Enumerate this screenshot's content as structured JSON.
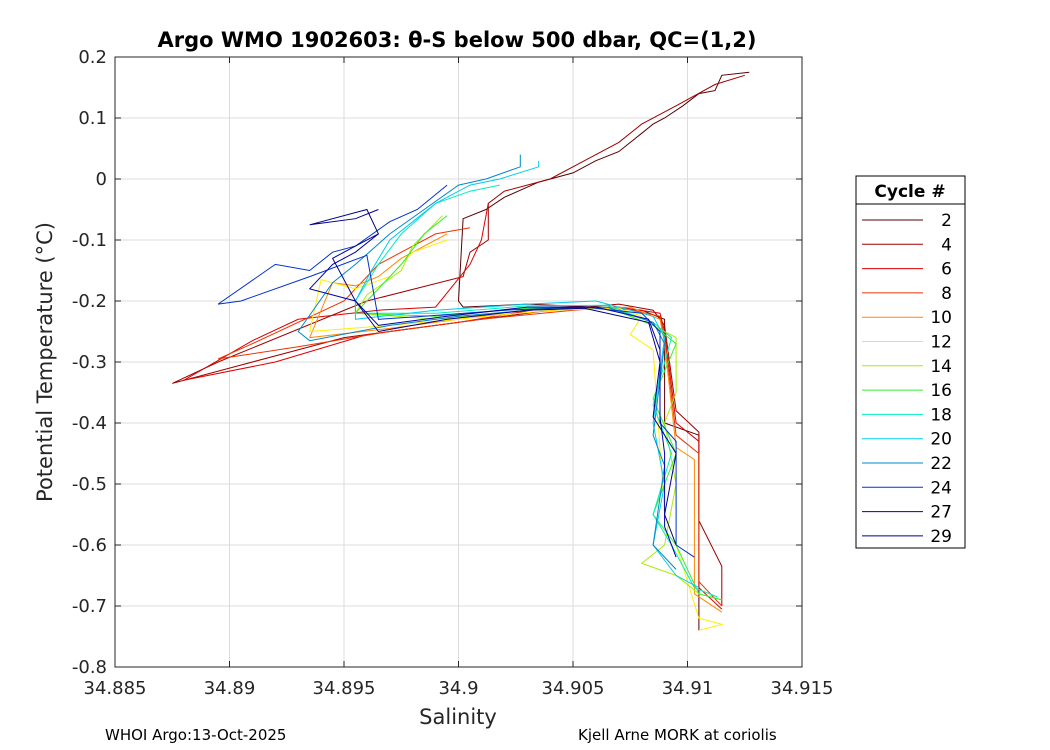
{
  "chart_data": {
    "type": "line",
    "title": "Argo WMO 1902603: θ-S below 500 dbar,  QC=(1,2)",
    "xlabel": "Salinity",
    "ylabel": "Potential Temperature (°C)",
    "xlim": [
      34.885,
      34.915
    ],
    "ylim": [
      -0.8,
      0.2
    ],
    "xticks": [
      "34.885",
      "34.89",
      "34.895",
      "34.9",
      "34.905",
      "34.91",
      "34.915"
    ],
    "yticks": [
      "0.2",
      "0.1",
      "0",
      "-0.1",
      "-0.2",
      "-0.3",
      "-0.4",
      "-0.5",
      "-0.6",
      "-0.7",
      "-0.8"
    ],
    "grid": true,
    "legend": {
      "title": "Cycle #",
      "placement": "outside-right",
      "entries": [
        {
          "label": "2",
          "color": "#5a0000"
        },
        {
          "label": "4",
          "color": "#a00000"
        },
        {
          "label": "6",
          "color": "#dd0000"
        },
        {
          "label": "8",
          "color": "#ee3300"
        },
        {
          "label": "10",
          "color": "#ff8800"
        },
        {
          "label": "12",
          "color": "#ffee00"
        },
        {
          "label": "14",
          "color": "#aaee00"
        },
        {
          "label": "16",
          "color": "#33ee33"
        },
        {
          "label": "18",
          "color": "#00eebb"
        },
        {
          "label": "20",
          "color": "#00ccee"
        },
        {
          "label": "22",
          "color": "#0088cc"
        },
        {
          "label": "24",
          "color": "#0033cc"
        },
        {
          "label": "27",
          "color": "#0000aa"
        },
        {
          "label": "29",
          "color": "#000088"
        }
      ]
    },
    "series": [
      {
        "name": "2",
        "points": [
          [
            34.9127,
            0.175
          ],
          [
            34.9115,
            0.17
          ],
          [
            34.9112,
            0.145
          ],
          [
            34.9105,
            0.14
          ],
          [
            34.9098,
            0.12
          ],
          [
            34.909,
            0.1
          ],
          [
            34.9085,
            0.09
          ],
          [
            34.908,
            0.075
          ],
          [
            34.9075,
            0.06
          ],
          [
            34.907,
            0.045
          ],
          [
            34.906,
            0.03
          ],
          [
            34.905,
            0.01
          ],
          [
            34.9035,
            -0.005
          ],
          [
            34.902,
            -0.03
          ],
          [
            34.9012,
            -0.05
          ],
          [
            34.9002,
            -0.065
          ],
          [
            34.9,
            -0.2
          ],
          [
            34.9002,
            -0.21
          ],
          [
            34.903,
            -0.205
          ],
          [
            34.906,
            -0.21
          ],
          [
            34.908,
            -0.215
          ],
          [
            34.909,
            -0.23
          ],
          [
            34.909,
            -0.4
          ],
          [
            34.9105,
            -0.42
          ],
          [
            34.9105,
            -0.74
          ]
        ]
      },
      {
        "name": "4",
        "points": [
          [
            34.9125,
            0.17
          ],
          [
            34.9112,
            0.155
          ],
          [
            34.9095,
            0.12
          ],
          [
            34.908,
            0.09
          ],
          [
            34.907,
            0.06
          ],
          [
            34.9055,
            0.03
          ],
          [
            34.904,
            0.0
          ],
          [
            34.902,
            -0.02
          ],
          [
            34.9013,
            -0.04
          ],
          [
            34.9013,
            -0.1
          ],
          [
            34.9005,
            -0.12
          ],
          [
            34.9002,
            -0.16
          ],
          [
            34.896,
            -0.2
          ],
          [
            34.8895,
            -0.3
          ],
          [
            34.8875,
            -0.335
          ],
          [
            34.89,
            -0.31
          ],
          [
            34.895,
            -0.26
          ],
          [
            34.899,
            -0.24
          ],
          [
            34.904,
            -0.215
          ],
          [
            34.907,
            -0.205
          ],
          [
            34.9085,
            -0.215
          ],
          [
            34.909,
            -0.24
          ],
          [
            34.9095,
            -0.38
          ],
          [
            34.9105,
            -0.415
          ],
          [
            34.9105,
            -0.56
          ],
          [
            34.9115,
            -0.635
          ],
          [
            34.9115,
            -0.7
          ]
        ]
      },
      {
        "name": "6",
        "points": [
          [
            34.9013,
            -0.04
          ],
          [
            34.901,
            -0.1
          ],
          [
            34.9005,
            -0.14
          ],
          [
            34.899,
            -0.21
          ],
          [
            34.8965,
            -0.215
          ],
          [
            34.893,
            -0.23
          ],
          [
            34.891,
            -0.265
          ],
          [
            34.888,
            -0.33
          ],
          [
            34.892,
            -0.3
          ],
          [
            34.896,
            -0.255
          ],
          [
            34.9,
            -0.235
          ],
          [
            34.904,
            -0.21
          ],
          [
            34.907,
            -0.21
          ],
          [
            34.9088,
            -0.22
          ],
          [
            34.909,
            -0.25
          ],
          [
            34.9095,
            -0.4
          ],
          [
            34.9105,
            -0.43
          ],
          [
            34.9105,
            -0.67
          ],
          [
            34.9115,
            -0.705
          ]
        ]
      },
      {
        "name": "8",
        "points": [
          [
            34.9005,
            -0.08
          ],
          [
            34.899,
            -0.09
          ],
          [
            34.8975,
            -0.12
          ],
          [
            34.8965,
            -0.14
          ],
          [
            34.895,
            -0.2
          ],
          [
            34.891,
            -0.27
          ],
          [
            34.8895,
            -0.295
          ],
          [
            34.893,
            -0.275
          ],
          [
            34.897,
            -0.25
          ],
          [
            34.901,
            -0.23
          ],
          [
            34.905,
            -0.215
          ],
          [
            34.907,
            -0.21
          ],
          [
            34.9088,
            -0.225
          ],
          [
            34.909,
            -0.26
          ],
          [
            34.9095,
            -0.42
          ],
          [
            34.9105,
            -0.45
          ],
          [
            34.9105,
            -0.66
          ],
          [
            34.9115,
            -0.7
          ]
        ]
      },
      {
        "name": "10",
        "points": [
          [
            34.8995,
            -0.09
          ],
          [
            34.8985,
            -0.11
          ],
          [
            34.8975,
            -0.13
          ],
          [
            34.8965,
            -0.16
          ],
          [
            34.8955,
            -0.175
          ],
          [
            34.8945,
            -0.17
          ],
          [
            34.8935,
            -0.26
          ],
          [
            34.897,
            -0.245
          ],
          [
            34.901,
            -0.225
          ],
          [
            34.905,
            -0.213
          ],
          [
            34.9075,
            -0.21
          ],
          [
            34.9088,
            -0.23
          ],
          [
            34.909,
            -0.27
          ],
          [
            34.9095,
            -0.44
          ],
          [
            34.9103,
            -0.46
          ],
          [
            34.9103,
            -0.68
          ],
          [
            34.9115,
            -0.71
          ]
        ]
      },
      {
        "name": "12",
        "points": [
          [
            34.8995,
            -0.1
          ],
          [
            34.898,
            -0.12
          ],
          [
            34.897,
            -0.16
          ],
          [
            34.8955,
            -0.18
          ],
          [
            34.894,
            -0.165
          ],
          [
            34.8935,
            -0.25
          ],
          [
            34.897,
            -0.24
          ],
          [
            34.9,
            -0.23
          ],
          [
            34.904,
            -0.215
          ],
          [
            34.907,
            -0.212
          ],
          [
            34.908,
            -0.225
          ],
          [
            34.9075,
            -0.255
          ],
          [
            34.9085,
            -0.28
          ],
          [
            34.909,
            -0.55
          ],
          [
            34.9095,
            -0.6
          ],
          [
            34.9105,
            -0.72
          ],
          [
            34.9115,
            -0.73
          ],
          [
            34.9105,
            -0.74
          ]
        ]
      },
      {
        "name": "14",
        "points": [
          [
            34.8993,
            -0.06
          ],
          [
            34.898,
            -0.11
          ],
          [
            34.8975,
            -0.15
          ],
          [
            34.896,
            -0.19
          ],
          [
            34.8955,
            -0.22
          ],
          [
            34.899,
            -0.23
          ],
          [
            34.903,
            -0.215
          ],
          [
            34.9065,
            -0.21
          ],
          [
            34.9085,
            -0.24
          ],
          [
            34.9095,
            -0.26
          ],
          [
            34.9095,
            -0.35
          ],
          [
            34.909,
            -0.4
          ],
          [
            34.9095,
            -0.5
          ],
          [
            34.909,
            -0.6
          ],
          [
            34.908,
            -0.63
          ],
          [
            34.9095,
            -0.65
          ],
          [
            34.9105,
            -0.68
          ],
          [
            34.9115,
            -0.69
          ]
        ]
      },
      {
        "name": "16",
        "points": [
          [
            34.8995,
            -0.06
          ],
          [
            34.8985,
            -0.09
          ],
          [
            34.8975,
            -0.14
          ],
          [
            34.8965,
            -0.18
          ],
          [
            34.8955,
            -0.22
          ],
          [
            34.899,
            -0.225
          ],
          [
            34.903,
            -0.212
          ],
          [
            34.9065,
            -0.21
          ],
          [
            34.9085,
            -0.24
          ],
          [
            34.9095,
            -0.27
          ],
          [
            34.9085,
            -0.36
          ],
          [
            34.9095,
            -0.45
          ],
          [
            34.9085,
            -0.55
          ],
          [
            34.9095,
            -0.6
          ],
          [
            34.9105,
            -0.68
          ],
          [
            34.9115,
            -0.69
          ]
        ]
      },
      {
        "name": "18",
        "points": [
          [
            34.9018,
            -0.01
          ],
          [
            34.9005,
            -0.02
          ],
          [
            34.899,
            -0.04
          ],
          [
            34.8975,
            -0.09
          ],
          [
            34.8965,
            -0.14
          ],
          [
            34.8955,
            -0.2
          ],
          [
            34.8955,
            -0.22
          ],
          [
            34.899,
            -0.22
          ],
          [
            34.903,
            -0.208
          ],
          [
            34.9065,
            -0.207
          ],
          [
            34.9085,
            -0.235
          ],
          [
            34.9093,
            -0.26
          ],
          [
            34.9085,
            -0.37
          ],
          [
            34.9093,
            -0.45
          ],
          [
            34.9085,
            -0.55
          ],
          [
            34.9093,
            -0.6
          ],
          [
            34.9103,
            -0.67
          ],
          [
            34.9113,
            -0.685
          ]
        ]
      },
      {
        "name": "20",
        "points": [
          [
            34.9035,
            0.03
          ],
          [
            34.9035,
            0.02
          ],
          [
            34.9018,
            0.0
          ],
          [
            34.9005,
            -0.01
          ],
          [
            34.899,
            -0.04
          ],
          [
            34.898,
            -0.07
          ],
          [
            34.897,
            -0.1
          ],
          [
            34.8962,
            -0.15
          ],
          [
            34.8955,
            -0.2
          ],
          [
            34.8955,
            -0.23
          ],
          [
            34.899,
            -0.215
          ],
          [
            34.903,
            -0.205
          ],
          [
            34.906,
            -0.2
          ],
          [
            34.9085,
            -0.225
          ],
          [
            34.909,
            -0.26
          ],
          [
            34.9085,
            -0.4
          ],
          [
            34.909,
            -0.5
          ],
          [
            34.9085,
            -0.6
          ],
          [
            34.9095,
            -0.65
          ],
          [
            34.9105,
            -0.67
          ]
        ]
      },
      {
        "name": "22",
        "points": [
          [
            34.9027,
            0.04
          ],
          [
            34.9027,
            0.02
          ],
          [
            34.9012,
            0.0
          ],
          [
            34.9,
            -0.01
          ],
          [
            34.8985,
            -0.05
          ],
          [
            34.897,
            -0.09
          ],
          [
            34.8955,
            -0.14
          ],
          [
            34.8945,
            -0.17
          ],
          [
            34.893,
            -0.25
          ],
          [
            34.8935,
            -0.265
          ],
          [
            34.897,
            -0.24
          ],
          [
            34.9,
            -0.225
          ],
          [
            34.904,
            -0.212
          ],
          [
            34.9065,
            -0.21
          ],
          [
            34.9085,
            -0.235
          ],
          [
            34.909,
            -0.27
          ],
          [
            34.9085,
            -0.42
          ],
          [
            34.909,
            -0.47
          ],
          [
            34.9085,
            -0.6
          ],
          [
            34.9095,
            -0.64
          ]
        ]
      },
      {
        "name": "24",
        "points": [
          [
            34.8995,
            -0.01
          ],
          [
            34.8982,
            -0.05
          ],
          [
            34.897,
            -0.07
          ],
          [
            34.8955,
            -0.11
          ],
          [
            34.8945,
            -0.12
          ],
          [
            34.8935,
            -0.15
          ],
          [
            34.892,
            -0.14
          ],
          [
            34.8895,
            -0.205
          ],
          [
            34.8905,
            -0.2
          ],
          [
            34.8935,
            -0.16
          ],
          [
            34.896,
            -0.125
          ],
          [
            34.8965,
            -0.23
          ],
          [
            34.8985,
            -0.225
          ],
          [
            34.902,
            -0.215
          ],
          [
            34.9055,
            -0.21
          ],
          [
            34.908,
            -0.22
          ],
          [
            34.9088,
            -0.25
          ],
          [
            34.9088,
            -0.4
          ],
          [
            34.9095,
            -0.43
          ],
          [
            34.9095,
            -0.6
          ],
          [
            34.9103,
            -0.62
          ]
        ]
      },
      {
        "name": "27",
        "points": [
          [
            34.8965,
            -0.09
          ],
          [
            34.8955,
            -0.12
          ],
          [
            34.8945,
            -0.14
          ],
          [
            34.8935,
            -0.18
          ],
          [
            34.8955,
            -0.2
          ],
          [
            34.8965,
            -0.24
          ],
          [
            34.8995,
            -0.225
          ],
          [
            34.903,
            -0.21
          ],
          [
            34.906,
            -0.21
          ],
          [
            34.9083,
            -0.23
          ],
          [
            34.9088,
            -0.28
          ],
          [
            34.9088,
            -0.39
          ],
          [
            34.909,
            -0.45
          ],
          [
            34.909,
            -0.57
          ],
          [
            34.9095,
            -0.62
          ]
        ]
      },
      {
        "name": "29",
        "points": [
          [
            34.8965,
            -0.05
          ],
          [
            34.8955,
            -0.065
          ],
          [
            34.8935,
            -0.075
          ],
          [
            34.896,
            -0.05
          ],
          [
            34.8965,
            -0.09
          ],
          [
            34.8955,
            -0.11
          ],
          [
            34.8945,
            -0.13
          ],
          [
            34.8955,
            -0.2
          ],
          [
            34.8965,
            -0.25
          ],
          [
            34.8995,
            -0.23
          ],
          [
            34.903,
            -0.215
          ],
          [
            34.9055,
            -0.212
          ],
          [
            34.9083,
            -0.235
          ],
          [
            34.9088,
            -0.3
          ],
          [
            34.9085,
            -0.39
          ],
          [
            34.9095,
            -0.45
          ],
          [
            34.909,
            -0.55
          ],
          [
            34.9095,
            -0.6
          ]
        ]
      }
    ]
  },
  "footer": {
    "left": "WHOI Argo:13-Oct-2025",
    "right": "Kjell Arne MORK at coriolis"
  }
}
